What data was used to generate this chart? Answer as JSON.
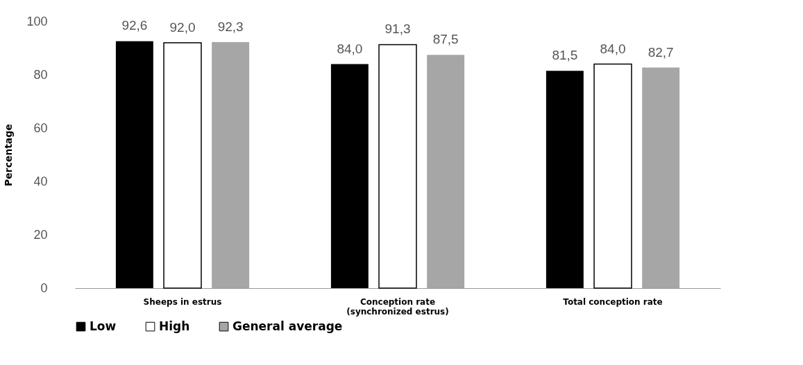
{
  "chart_data": {
    "type": "bar",
    "ylabel": "Percentage",
    "categories": [
      "Sheeps in estrus",
      "Conception rate\n(synchronized estrus)",
      "Total conception rate"
    ],
    "series": [
      {
        "name": "Low",
        "color": "#000000",
        "values": [
          92.6,
          84.0,
          81.5
        ],
        "value_labels": [
          "92,6",
          "84,0",
          "81,5"
        ]
      },
      {
        "name": "High",
        "color": "#ffffff",
        "values": [
          92.0,
          91.3,
          84.0
        ],
        "value_labels": [
          "92,0",
          "91,3",
          "84,0"
        ]
      },
      {
        "name": "General average",
        "color": "#a6a6a6",
        "values": [
          92.3,
          87.5,
          82.7
        ],
        "value_labels": [
          "92,3",
          "87,5",
          "82,7"
        ]
      }
    ],
    "ylim": [
      0,
      100
    ],
    "yticks": [
      0,
      20,
      40,
      60,
      80,
      100
    ],
    "grid": false,
    "legend": "bottom"
  }
}
